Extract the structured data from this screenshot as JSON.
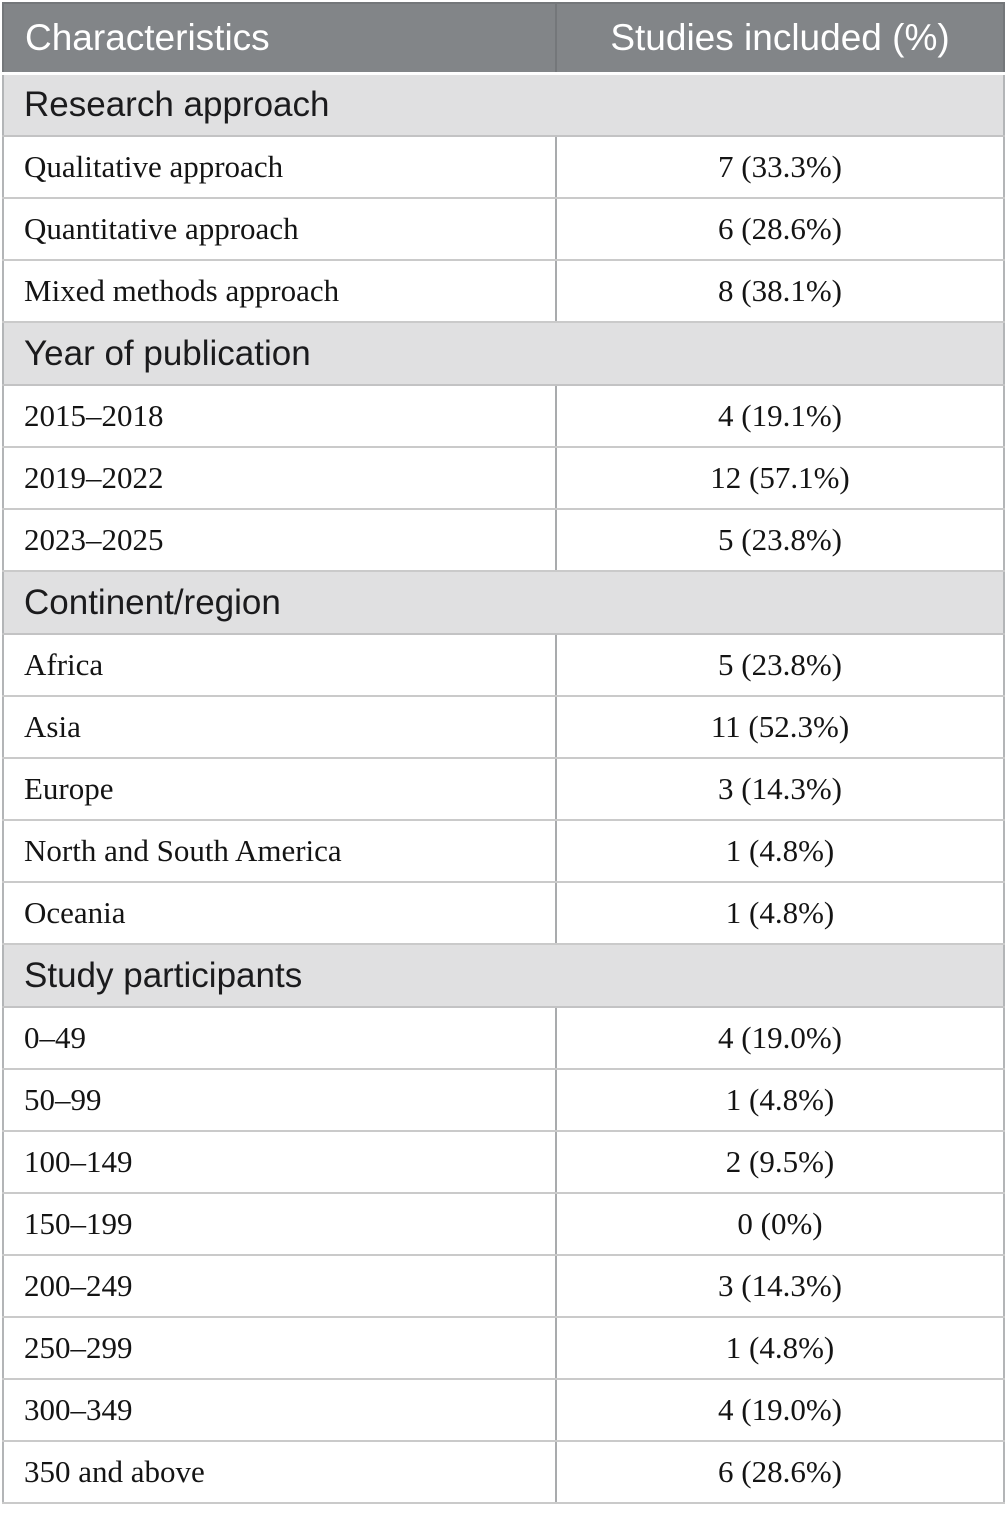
{
  "header": {
    "col1": "Characteristics",
    "col2": "Studies included (%)"
  },
  "sections": [
    {
      "title": "Research approach",
      "rows": [
        {
          "label": "Qualitative approach",
          "value": "7 (33.3%)"
        },
        {
          "label": "Quantitative approach",
          "value": "6 (28.6%)"
        },
        {
          "label": "Mixed methods approach",
          "value": "8 (38.1%)"
        }
      ]
    },
    {
      "title": "Year of publication",
      "rows": [
        {
          "label": "2015–2018",
          "value": "4 (19.1%)"
        },
        {
          "label": "2019–2022",
          "value": "12 (57.1%)"
        },
        {
          "label": "2023–2025",
          "value": "5 (23.8%)"
        }
      ]
    },
    {
      "title": "Continent/region",
      "rows": [
        {
          "label": "Africa",
          "value": "5 (23.8%)"
        },
        {
          "label": "Asia",
          "value": "11 (52.3%)"
        },
        {
          "label": "Europe",
          "value": "3 (14.3%)"
        },
        {
          "label": "North and South America",
          "value": "1 (4.8%)"
        },
        {
          "label": "Oceania",
          "value": "1 (4.8%)"
        }
      ]
    },
    {
      "title": "Study participants",
      "rows": [
        {
          "label": "0–49",
          "value": "4 (19.0%)"
        },
        {
          "label": "50–99",
          "value": "1 (4.8%)"
        },
        {
          "label": "100–149",
          "value": "2 (9.5%)"
        },
        {
          "label": "150–199",
          "value": "0 (0%)"
        },
        {
          "label": "200–249",
          "value": "3 (14.3%)"
        },
        {
          "label": "250–299",
          "value": "1 (4.8%)"
        },
        {
          "label": "300–349",
          "value": "4 (19.0%)"
        },
        {
          "label": "350 and above",
          "value": "6 (28.6%)"
        }
      ]
    }
  ],
  "colors": {
    "header_bg": "#828588",
    "header_text": "#ffffff",
    "section_bg": "#e0e0e1",
    "row_bg": "#ffffff",
    "data_text": "#141414",
    "border": "#b3b5b7"
  }
}
